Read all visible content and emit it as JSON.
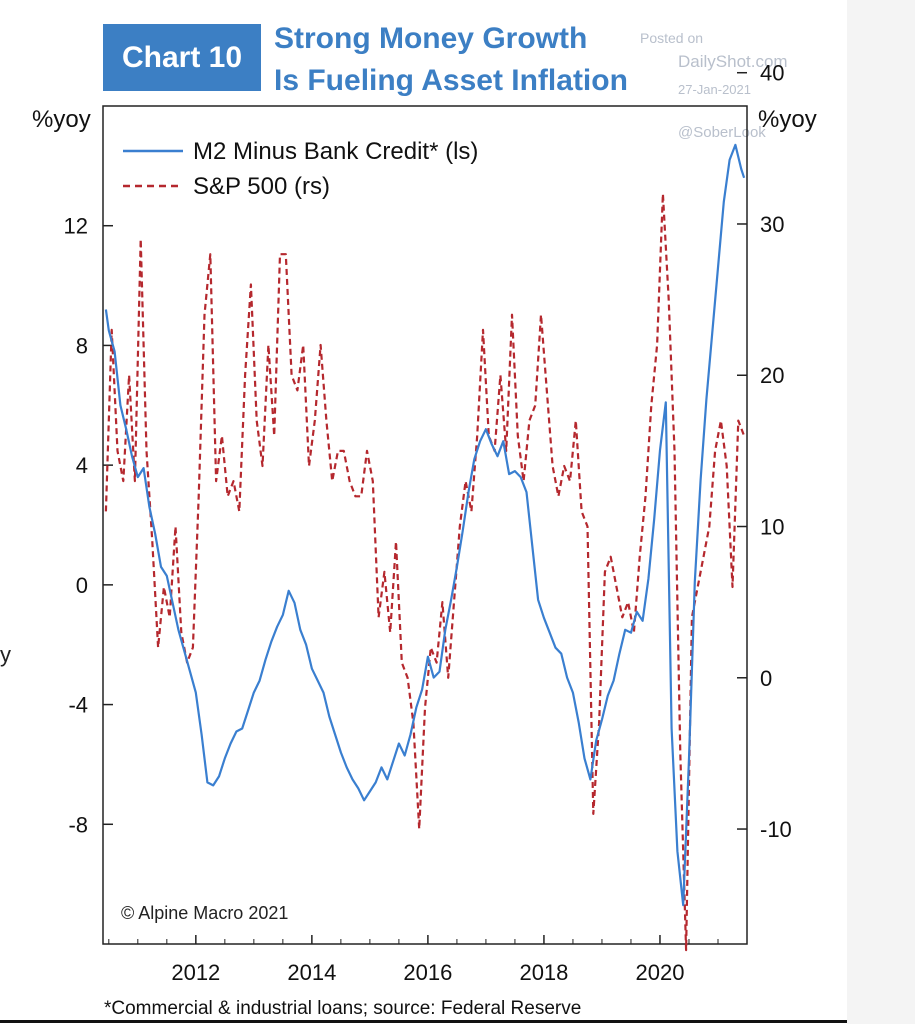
{
  "header": {
    "badge": "Chart 10",
    "title_line1": "Strong Money Growth",
    "title_line2": "Is Fueling Asset Inflation"
  },
  "watermark": {
    "posted": "Posted on",
    "site": "DailyShot.com",
    "date": "27-Jan-2021",
    "handle": "@SoberLook"
  },
  "stray_left": "y",
  "footnote": "*Commercial & industrial loans; source: Federal Reserve",
  "colors": {
    "accent": "#3c7fc4",
    "m2_line": "#3a7fd0",
    "sp500_line": "#b5282e"
  },
  "chart_data": {
    "type": "line",
    "left_axis_label": "%yoy",
    "right_axis_label": "%yoy",
    "copyright": "© Alpine Macro 2021",
    "xlim": [
      2010.4,
      2021.5
    ],
    "ylim_left": [
      -12,
      16
    ],
    "ylim_right": [
      -17.6,
      37.8
    ],
    "x_ticks": [
      2012,
      2014,
      2016,
      2018,
      2020
    ],
    "x_tick_labels": [
      "2012",
      "2014",
      "2016",
      "2018",
      "2020"
    ],
    "left_ticks": [
      12,
      8,
      4,
      0,
      -4,
      -8
    ],
    "left_tick_labels": [
      "12",
      "8",
      "4",
      "0",
      "-4",
      "-8"
    ],
    "right_ticks": [
      40,
      30,
      20,
      10,
      0,
      -10
    ],
    "right_tick_labels": [
      "40",
      "30",
      "20",
      "10",
      "0",
      "-10"
    ],
    "legend_position": "top-left",
    "grid": false,
    "series": [
      {
        "name": "M2 Minus Bank Credit* (ls)",
        "axis": "left",
        "style": "solid",
        "x": [
          2010.45,
          2010.5,
          2010.6,
          2010.7,
          2010.8,
          2010.9,
          2011.0,
          2011.1,
          2011.2,
          2011.3,
          2011.4,
          2011.5,
          2011.6,
          2011.7,
          2011.8,
          2011.9,
          2012.0,
          2012.1,
          2012.2,
          2012.3,
          2012.4,
          2012.5,
          2012.6,
          2012.7,
          2012.8,
          2012.9,
          2013.0,
          2013.1,
          2013.2,
          2013.3,
          2013.4,
          2013.5,
          2013.6,
          2013.7,
          2013.8,
          2013.9,
          2014.0,
          2014.1,
          2014.2,
          2014.3,
          2014.4,
          2014.5,
          2014.6,
          2014.7,
          2014.8,
          2014.9,
          2015.0,
          2015.1,
          2015.2,
          2015.3,
          2015.4,
          2015.5,
          2015.6,
          2015.7,
          2015.8,
          2015.9,
          2016.0,
          2016.1,
          2016.2,
          2016.3,
          2016.4,
          2016.5,
          2016.6,
          2016.7,
          2016.8,
          2016.9,
          2017.0,
          2017.1,
          2017.2,
          2017.3,
          2017.4,
          2017.5,
          2017.6,
          2017.7,
          2017.8,
          2017.9,
          2018.0,
          2018.1,
          2018.2,
          2018.3,
          2018.4,
          2018.5,
          2018.6,
          2018.7,
          2018.8,
          2018.9,
          2019.0,
          2019.1,
          2019.2,
          2019.3,
          2019.4,
          2019.5,
          2019.6,
          2019.7,
          2019.8,
          2019.9,
          2020.0,
          2020.1,
          2020.2,
          2020.3,
          2020.4,
          2020.5,
          2020.6,
          2020.7,
          2020.8,
          2020.9,
          2021.0,
          2021.1,
          2021.2,
          2021.3,
          2021.4,
          2021.45
        ],
        "values": [
          9.2,
          8.5,
          7.8,
          6.0,
          5.2,
          4.3,
          3.6,
          3.9,
          2.6,
          1.7,
          0.6,
          0.3,
          -0.6,
          -1.5,
          -2.2,
          -2.9,
          -3.6,
          -5.0,
          -6.6,
          -6.7,
          -6.4,
          -5.8,
          -5.3,
          -4.9,
          -4.8,
          -4.2,
          -3.6,
          -3.2,
          -2.5,
          -1.9,
          -1.4,
          -1.0,
          -0.2,
          -0.6,
          -1.5,
          -2.0,
          -2.8,
          -3.2,
          -3.6,
          -4.4,
          -5.0,
          -5.6,
          -6.1,
          -6.5,
          -6.8,
          -7.2,
          -6.9,
          -6.6,
          -6.1,
          -6.5,
          -5.9,
          -5.3,
          -5.7,
          -5.0,
          -4.1,
          -3.5,
          -2.4,
          -3.1,
          -2.9,
          -1.5,
          -0.5,
          0.6,
          1.8,
          3.1,
          4.2,
          4.8,
          5.2,
          4.7,
          4.3,
          4.8,
          3.7,
          3.8,
          3.6,
          3.1,
          1.3,
          -0.5,
          -1.1,
          -1.6,
          -2.1,
          -2.3,
          -3.1,
          -3.6,
          -4.6,
          -5.8,
          -6.5,
          -5.2,
          -4.5,
          -3.7,
          -3.2,
          -2.3,
          -1.5,
          -1.6,
          -0.9,
          -1.2,
          0.2,
          2.2,
          4.5,
          6.1,
          -4.8,
          -8.9,
          -10.7,
          -5.8,
          0.1,
          3.5,
          6.2,
          8.4,
          10.6,
          12.8,
          14.2,
          14.7,
          13.9,
          13.6
        ]
      },
      {
        "name": "S&P 500 (rs)",
        "axis": "right",
        "style": "dashed",
        "x": [
          2010.45,
          2010.55,
          2010.65,
          2010.75,
          2010.85,
          2010.95,
          2011.05,
          2011.15,
          2011.25,
          2011.35,
          2011.45,
          2011.55,
          2011.65,
          2011.75,
          2011.85,
          2011.95,
          2012.05,
          2012.15,
          2012.25,
          2012.35,
          2012.45,
          2012.55,
          2012.65,
          2012.75,
          2012.85,
          2012.95,
          2013.05,
          2013.15,
          2013.25,
          2013.35,
          2013.45,
          2013.55,
          2013.65,
          2013.75,
          2013.85,
          2013.95,
          2014.05,
          2014.15,
          2014.25,
          2014.35,
          2014.45,
          2014.55,
          2014.65,
          2014.75,
          2014.85,
          2014.95,
          2015.05,
          2015.15,
          2015.25,
          2015.35,
          2015.45,
          2015.55,
          2015.65,
          2015.75,
          2015.85,
          2015.95,
          2016.05,
          2016.15,
          2016.25,
          2016.35,
          2016.45,
          2016.55,
          2016.65,
          2016.75,
          2016.85,
          2016.95,
          2017.05,
          2017.15,
          2017.25,
          2017.35,
          2017.45,
          2017.55,
          2017.65,
          2017.75,
          2017.85,
          2017.95,
          2018.05,
          2018.15,
          2018.25,
          2018.35,
          2018.45,
          2018.55,
          2018.65,
          2018.75,
          2018.85,
          2018.95,
          2019.05,
          2019.15,
          2019.25,
          2019.35,
          2019.45,
          2019.55,
          2019.65,
          2019.75,
          2019.85,
          2019.95,
          2020.05,
          2020.15,
          2020.25,
          2020.35,
          2020.45,
          2020.55,
          2020.65,
          2020.75,
          2020.85,
          2020.95,
          2021.05,
          2021.15,
          2021.25,
          2021.35,
          2021.45
        ],
        "values": [
          11,
          23,
          15,
          13,
          20,
          13,
          29,
          15,
          9,
          2,
          6,
          4,
          10,
          3,
          1,
          2,
          12,
          24,
          28,
          13,
          16,
          12,
          13,
          11,
          20,
          26,
          17,
          14,
          22,
          16,
          28,
          28,
          20,
          19,
          22,
          14,
          17,
          22,
          17,
          13,
          15,
          15,
          13,
          12,
          12,
          15,
          13,
          4,
          7,
          3,
          9,
          1,
          0,
          -3,
          -10,
          -2,
          2,
          1,
          5,
          0,
          5,
          10,
          13,
          11,
          16,
          23,
          16,
          15,
          20,
          15,
          24,
          16,
          13,
          17,
          18,
          24,
          19,
          14,
          12,
          14,
          13,
          17,
          11,
          10,
          -9,
          -3,
          7,
          8,
          6,
          4,
          5,
          3,
          8,
          12,
          18,
          22,
          32,
          25,
          15,
          -5,
          -18,
          4,
          6,
          8,
          10,
          15,
          17,
          14,
          6,
          17,
          16
        ]
      }
    ]
  }
}
